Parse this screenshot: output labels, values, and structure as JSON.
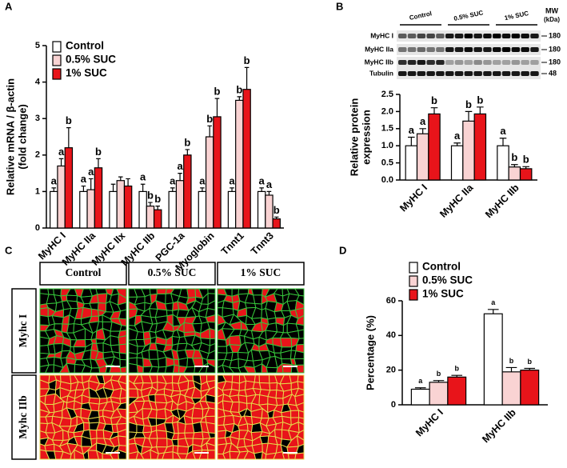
{
  "panels": [
    "A",
    "B",
    "C",
    "D"
  ],
  "blot": {
    "lanes": [
      "Control",
      "0.5% SUC",
      "1% SUC"
    ],
    "mw_label": [
      "MW",
      "(kDa)"
    ],
    "rows": [
      {
        "label": "MyHC I",
        "mw": "180"
      },
      {
        "label": "MyHC IIa",
        "mw": "180"
      },
      {
        "label": "MyHC IIb",
        "mw": "180"
      },
      {
        "label": "Tubulin",
        "mw": "48"
      }
    ]
  },
  "micrographs": {
    "columns": [
      "Control",
      "0.5% SUC",
      "1% SUC"
    ],
    "rows": [
      "Myhc I",
      "Myhc IIb"
    ]
  },
  "chart_data": [
    {
      "type": "bar",
      "ylabel": [
        "Relative mRNA / β-actin",
        "(fold change)"
      ],
      "legend": true,
      "categories": [
        "MyHC I",
        "MyHC IIa",
        "MyHC IIx",
        "MyHC IIb",
        "PGC-1a",
        "Myoglobin",
        "Tnnt1",
        "Tnnt3"
      ],
      "ylim": [
        0,
        5
      ],
      "yticks": [
        0,
        1,
        2,
        3,
        4,
        5
      ],
      "series": [
        {
          "name": "Control",
          "color": "#ffffff",
          "values": [
            1.0,
            1.0,
            1.0,
            1.0,
            1.0,
            1.0,
            1.0,
            1.0
          ],
          "errors": [
            0.1,
            0.15,
            0.2,
            0.2,
            0.1,
            0.1,
            0.1,
            0.1
          ],
          "letters": [
            "a",
            "a",
            null,
            "a",
            "a",
            "a",
            "a",
            "a"
          ]
        },
        {
          "name": "0.5% SUC",
          "color": "#f9d3d3",
          "values": [
            1.7,
            1.05,
            1.3,
            0.6,
            1.3,
            2.5,
            3.5,
            0.9
          ],
          "errors": [
            0.2,
            0.3,
            0.1,
            0.1,
            0.2,
            0.3,
            0.1,
            0.1
          ],
          "letters": [
            "a",
            "a",
            null,
            "b",
            "a",
            "b",
            "b",
            "a"
          ]
        },
        {
          "name": "1% SUC",
          "color": "#e8141a",
          "values": [
            2.2,
            1.65,
            1.15,
            0.5,
            2.0,
            3.05,
            3.8,
            0.25
          ],
          "errors": [
            0.55,
            0.25,
            0.2,
            0.1,
            0.15,
            0.5,
            0.6,
            0.05
          ],
          "letters": [
            "b",
            "b",
            null,
            "b",
            "b",
            "b",
            "b",
            "b"
          ]
        }
      ]
    },
    {
      "type": "bar",
      "ylabel": [
        "Relative protein",
        "expression"
      ],
      "legend": false,
      "categories": [
        "MyHC I",
        "MyHC IIa",
        "MyHC IIb"
      ],
      "ylim": [
        0,
        2.5
      ],
      "yticks": [
        {
          "value": 0,
          "label": "0.0"
        },
        0.5,
        {
          "value": 1,
          "label": "1.0"
        },
        1.5,
        {
          "value": 2,
          "label": "2.0"
        },
        2.5
      ],
      "series": [
        {
          "name": "Control",
          "color": "#ffffff",
          "values": [
            1.0,
            1.0,
            1.0
          ],
          "errors": [
            0.25,
            0.08,
            0.22
          ],
          "letters": [
            "a",
            "a",
            "a"
          ]
        },
        {
          "name": "0.5% SUC",
          "color": "#f9d3d3",
          "values": [
            1.35,
            1.72,
            0.38
          ],
          "errors": [
            0.15,
            0.28,
            0.07
          ],
          "letters": [
            "a",
            "b",
            "b"
          ]
        },
        {
          "name": "1% SUC",
          "color": "#e8141a",
          "values": [
            1.93,
            1.93,
            0.33
          ],
          "errors": [
            0.18,
            0.2,
            0.06
          ],
          "letters": [
            "b",
            "b",
            "b"
          ]
        }
      ]
    },
    {
      "type": "bar",
      "ylabel": [
        "Percentage (%)"
      ],
      "legend": true,
      "categories": [
        "MyHC I",
        "MyHC IIb"
      ],
      "ylim": [
        0,
        60
      ],
      "yticks": [
        0,
        20,
        40,
        60
      ],
      "series": [
        {
          "name": "Control",
          "color": "#ffffff",
          "values": [
            9,
            52.5
          ],
          "errors": [
            0.8,
            2.5
          ],
          "letters": [
            "a",
            "a"
          ]
        },
        {
          "name": "0.5% SUC",
          "color": "#f9d3d3",
          "values": [
            13,
            19
          ],
          "errors": [
            1,
            2.5
          ],
          "letters": [
            "b",
            "b"
          ]
        },
        {
          "name": "1% SUC",
          "color": "#e8141a",
          "values": [
            16,
            20
          ],
          "errors": [
            1,
            1
          ],
          "letters": [
            "b",
            "b"
          ]
        }
      ]
    }
  ]
}
